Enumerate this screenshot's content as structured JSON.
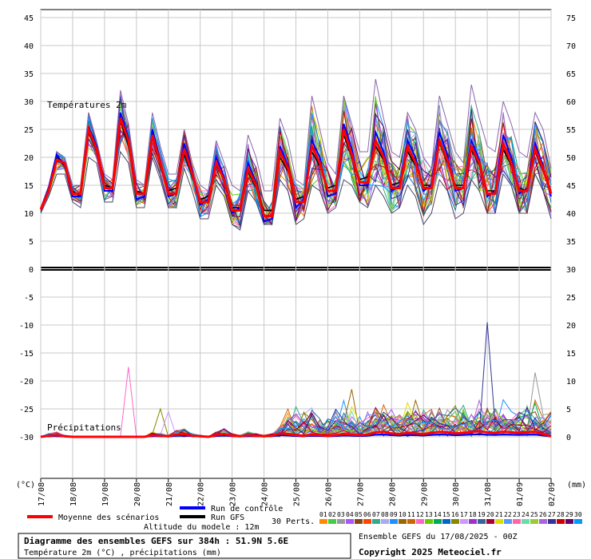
{
  "chart_data": {
    "type": "line",
    "left_axis_unit": "(°C)",
    "right_axis_unit": "(mm)",
    "left_ticks": [
      45,
      40,
      35,
      30,
      25,
      20,
      15,
      10,
      5,
      0,
      -5,
      -10,
      -15,
      -20,
      -25,
      -30
    ],
    "right_ticks": [
      75,
      70,
      65,
      60,
      55,
      50,
      45,
      40,
      35,
      30,
      25,
      20,
      15,
      10,
      5,
      0
    ],
    "left_range": [
      -30,
      45
    ],
    "x_labels": [
      "17/08",
      "18/08",
      "19/08",
      "20/08",
      "21/08",
      "22/08",
      "23/08",
      "24/08",
      "25/08",
      "26/08",
      "27/08",
      "28/08",
      "29/08",
      "30/08",
      "31/08",
      "01/09",
      "02/09"
    ],
    "time_step_hours": 6,
    "grid": true,
    "panel_labels": {
      "temperature": "Températures 2m",
      "precipitation": "Précipitations"
    },
    "temperature_mean": [
      10.7,
      14.0,
      19.5,
      19.0,
      13.5,
      13.5,
      25.0,
      21.5,
      14.5,
      14.5,
      27.0,
      23.0,
      13.5,
      13.5,
      24.0,
      19.0,
      13.5,
      13.5,
      21.5,
      17.0,
      12.0,
      12.0,
      19.0,
      16.0,
      10.5,
      10.5,
      18.0,
      15.0,
      9.5,
      9.5,
      21.0,
      18.0,
      12.0,
      12.0,
      22.0,
      19.0,
      14.0,
      14.0,
      25.0,
      20.5,
      15.5,
      15.5,
      23.0,
      20.0,
      14.5,
      14.5,
      22.0,
      19.0,
      14.5,
      14.5,
      23.0,
      19.5,
      14.5,
      14.5,
      22.0,
      19.0,
      13.5,
      13.5,
      22.5,
      19.0,
      14.0,
      14.0,
      21.5,
      18.0,
      13.5
    ],
    "temperature_control": [
      10.7,
      14.5,
      20.5,
      18.5,
      13.0,
      13.0,
      25.5,
      22.0,
      14.0,
      14.0,
      28.0,
      23.5,
      12.5,
      13.0,
      25.0,
      19.5,
      13.0,
      13.5,
      22.5,
      17.5,
      11.5,
      12.5,
      20.0,
      16.5,
      10.0,
      11.0,
      19.0,
      15.5,
      8.5,
      9.0,
      22.0,
      18.5,
      11.0,
      12.5,
      23.0,
      20.0,
      13.0,
      13.5,
      26.0,
      21.5,
      15.0,
      15.0,
      24.5,
      21.0,
      14.0,
      15.0,
      23.0,
      20.0,
      14.0,
      15.0,
      24.5,
      20.5,
      14.0,
      14.5,
      23.0,
      19.5,
      13.0,
      14.0,
      24.0,
      20.0,
      13.5,
      14.5,
      22.5,
      18.5,
      13.0
    ],
    "temperature_gfs": [
      10.7,
      14.0,
      20.0,
      19.0,
      14.0,
      13.0,
      24.5,
      21.0,
      15.0,
      14.5,
      26.5,
      22.0,
      14.0,
      13.5,
      23.5,
      18.5,
      14.0,
      14.5,
      20.5,
      16.5,
      12.5,
      13.0,
      18.5,
      16.0,
      11.0,
      11.0,
      17.5,
      14.5,
      10.5,
      10.5,
      20.0,
      17.5,
      12.5,
      13.0,
      21.0,
      18.5,
      14.5,
      15.0,
      24.0,
      20.0,
      16.0,
      16.5,
      22.0,
      19.5,
      15.0,
      15.5,
      21.0,
      18.5,
      15.0,
      15.0,
      22.5,
      19.0,
      15.0,
      15.0,
      21.5,
      18.5,
      14.0,
      14.0,
      21.5,
      18.5,
      14.5,
      14.0,
      21.0,
      17.5,
      14.0
    ],
    "precipitation_mean_mm": [
      0,
      0.2,
      0.3,
      0.1,
      0,
      0,
      0,
      0,
      0,
      0,
      0,
      0,
      0,
      0,
      0.3,
      0.2,
      0.1,
      0.4,
      0.5,
      0.2,
      0.1,
      0,
      0.3,
      0.5,
      0.2,
      0.1,
      0.3,
      0.2,
      0.1,
      0.2,
      0.6,
      0.5,
      0.3,
      0.2,
      0.4,
      0.3,
      0.2,
      0.3,
      0.5,
      0.4,
      0.3,
      0.4,
      0.8,
      0.9,
      0.6,
      0.5,
      0.7,
      0.6,
      0.5,
      0.7,
      0.9,
      0.8,
      0.6,
      0.7,
      0.9,
      1.0,
      0.8,
      0.7,
      0.9,
      0.8,
      0.7,
      0.8,
      0.9,
      0.5,
      0.1
    ],
    "precipitation_max_peaks_mm": [
      {
        "index": 11,
        "value": 12.5
      },
      {
        "index": 15,
        "value": 5.0
      },
      {
        "index": 16,
        "value": 4.5
      },
      {
        "index": 38,
        "value": 6.5
      },
      {
        "index": 39,
        "value": 8.5
      },
      {
        "index": 56,
        "value": 20.5
      },
      {
        "index": 62,
        "value": 11.5
      }
    ],
    "temperature_ensemble_max": [
      11,
      15,
      21,
      20,
      15,
      15,
      28,
      23,
      17,
      16,
      32,
      26,
      16,
      15,
      28,
      22,
      17,
      17,
      25,
      19,
      15,
      14,
      23,
      19,
      15,
      14,
      24,
      20,
      14,
      14,
      27,
      23,
      16,
      15,
      31,
      25,
      19,
      17,
      31,
      26,
      21,
      21,
      34,
      27,
      21,
      20,
      28,
      25,
      20,
      18,
      31,
      26,
      21,
      19,
      33,
      27,
      22,
      21,
      30,
      26,
      21,
      20,
      28,
      25,
      18
    ],
    "temperature_ensemble_min": [
      10,
      13,
      17,
      17,
      12,
      11,
      20,
      19,
      12,
      12,
      21,
      19,
      11,
      11,
      20,
      16,
      11,
      11,
      18,
      14,
      9,
      9,
      15,
      13,
      8,
      7,
      14,
      12,
      8,
      8,
      16,
      14,
      8,
      9,
      15,
      14,
      10,
      11,
      16,
      15,
      12,
      11,
      15,
      13,
      10,
      11,
      15,
      13,
      8,
      10,
      16,
      14,
      9,
      10,
      16,
      14,
      10,
      10,
      17,
      15,
      10,
      10,
      17,
      14,
      9
    ]
  },
  "legend": {
    "mean": "Moyenne des scénarios",
    "control": "Run de contrôle",
    "gfs": "Run GFS",
    "perts_label": "30 Perts.",
    "perts": [
      "01",
      "02",
      "03",
      "04",
      "05",
      "06",
      "07",
      "08",
      "09",
      "10",
      "11",
      "12",
      "13",
      "14",
      "15",
      "16",
      "17",
      "18",
      "19",
      "20",
      "21",
      "22",
      "23",
      "24",
      "25",
      "26",
      "27",
      "28",
      "29",
      "30"
    ],
    "altitude": "Altitude du modele : 12m",
    "title": "Diagramme des ensembles GEFS sur 384h : 51.9N 5.6E",
    "subtitle": "Température 2m (°C) , précipitations (mm)",
    "run_info": "Ensemble GEFS du 17/08/2025 - 00Z",
    "copyright": "Copyright 2025 Meteociel.fr"
  },
  "colors": {
    "mean": "#ff0000",
    "control": "#0000ff",
    "gfs": "#000000",
    "perts": [
      "#ff8a00",
      "#44cc44",
      "#999999",
      "#aa55ff",
      "#8b4513",
      "#ff4400",
      "#33aa88",
      "#aaaaee",
      "#1e90ff",
      "#996600",
      "#cc6600",
      "#ff66cc",
      "#66cc00",
      "#00aa55",
      "#0066cc",
      "#888800",
      "#cc99ff",
      "#9933cc",
      "#336699",
      "#aa0033",
      "#dddd00",
      "#5599ff",
      "#ff66aa",
      "#66ddaa",
      "#99cc33",
      "#aa66dd",
      "#333399",
      "#cc0000",
      "#660066",
      "#0099ff"
    ]
  }
}
